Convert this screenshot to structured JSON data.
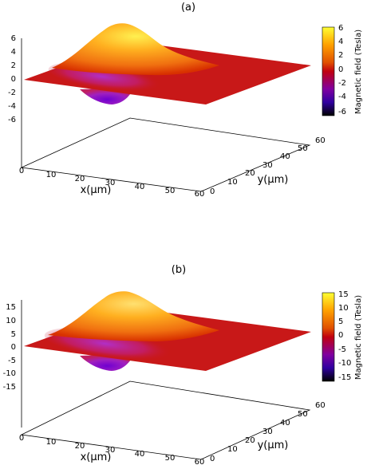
{
  "chart_data": [
    {
      "type": "surface",
      "panel_label": "(a)",
      "xlabel": "x(μm)",
      "ylabel": "y(μm)",
      "zlabel": "",
      "xlim": [
        0,
        60
      ],
      "ylim": [
        0,
        60
      ],
      "zlim": [
        -6,
        6
      ],
      "x_ticks": [
        "0",
        "10",
        "20",
        "30",
        "40",
        "50",
        "60"
      ],
      "y_ticks": [
        "0",
        "10",
        "20",
        "30",
        "40",
        "50",
        "60"
      ],
      "z_ticks": [
        "6",
        "4",
        "2",
        "0",
        "-2",
        "-4",
        "-6"
      ],
      "colorbar": {
        "label": "Magnetic field (Tesla)",
        "ticks": [
          "6",
          "4",
          "2",
          "0",
          "-2",
          "-4",
          "-6"
        ],
        "range": [
          -6,
          6
        ],
        "colors": [
          "#ffff33",
          "#ffa000",
          "#e05000",
          "#c00010",
          "#8000a0",
          "#3000a0",
          "#000000"
        ]
      },
      "peak": {
        "x": 22,
        "y": 30,
        "z": 6
      },
      "trough": {
        "x": 30,
        "y": 20,
        "z": -6
      }
    },
    {
      "type": "surface",
      "panel_label": "(b)",
      "xlabel": "x(μm)",
      "ylabel": "y(μm)",
      "zlabel": "",
      "xlim": [
        0,
        60
      ],
      "ylim": [
        0,
        60
      ],
      "zlim": [
        -15,
        15
      ],
      "x_ticks": [
        "0",
        "10",
        "20",
        "30",
        "40",
        "50",
        "60"
      ],
      "y_ticks": [
        "0",
        "10",
        "20",
        "30",
        "40",
        "50",
        "60"
      ],
      "z_ticks": [
        "15",
        "10",
        "5",
        "0",
        "-5",
        "-10",
        "-15"
      ],
      "colorbar": {
        "label": "Magnetic field (Tesla)",
        "ticks": [
          "15",
          "10",
          "5",
          "0",
          "-5",
          "-10",
          "-15"
        ],
        "range": [
          -15,
          15
        ],
        "colors": [
          "#ffff33",
          "#ffa000",
          "#e05000",
          "#c00010",
          "#8000a0",
          "#3000a0",
          "#000000"
        ]
      },
      "peak": {
        "x": 22,
        "y": 30,
        "z": 15
      },
      "trough": {
        "x": 30,
        "y": 20,
        "z": -15
      }
    }
  ]
}
